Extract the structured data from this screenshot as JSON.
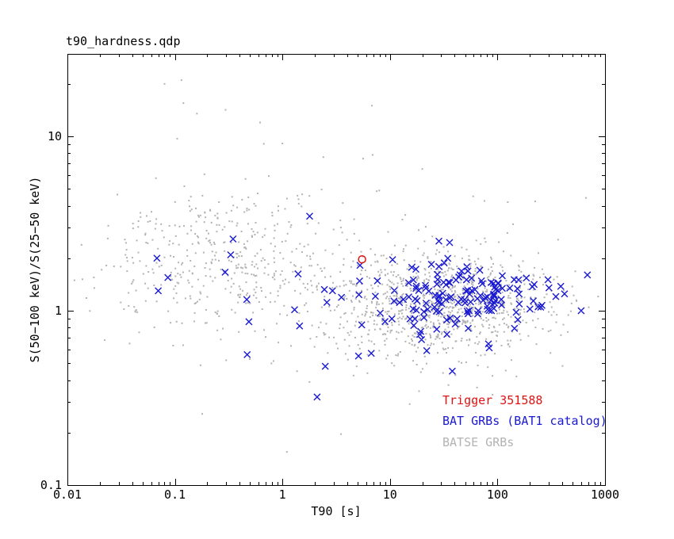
{
  "chart_data": {
    "type": "scatter",
    "title": "t90_hardness.qdp",
    "xlabel": "T90 [s]",
    "ylabel": "S(50−100 keV)/S(25−50 keV)",
    "x_log": true,
    "y_log": true,
    "xlim": [
      0.01,
      1000
    ],
    "ylim": [
      0.1,
      29.7
    ],
    "grid": false,
    "frame_color": "#000000",
    "x_ticks": [
      {
        "value": 0.01,
        "label": "0.01"
      },
      {
        "value": 0.1,
        "label": "0.1"
      },
      {
        "value": 1,
        "label": "1"
      },
      {
        "value": 10,
        "label": "10"
      },
      {
        "value": 100,
        "label": "100"
      },
      {
        "value": 1000,
        "label": "1000"
      }
    ],
    "y_ticks": [
      {
        "value": 0.1,
        "label": "0.1"
      },
      {
        "value": 1,
        "label": "1"
      },
      {
        "value": 10,
        "label": "10"
      }
    ],
    "series": [
      {
        "name": "BATSE GRBs",
        "marker": "dot",
        "color": "#b3b3b3",
        "size": 2,
        "seed": 101,
        "clusters": [
          {
            "n": 420,
            "t90_log_mean": -0.55,
            "t90_log_sigma": 0.52,
            "ratio_log_mean": 0.3,
            "ratio_log_sigma": 0.21
          },
          {
            "n": 1040,
            "t90_log_mean": 1.45,
            "t90_log_sigma": 0.52,
            "ratio_log_mean": 0.04,
            "ratio_log_sigma": 0.155
          },
          {
            "n": 70,
            "t90_log_mean": 0.7,
            "t90_log_sigma": 1.1,
            "ratio_log_mean": 0.25,
            "ratio_log_sigma": 0.42
          }
        ],
        "extra_points": [
          [
            0.115,
            21
          ],
          [
            0.08,
            20
          ],
          [
            0.12,
            15.5
          ],
          [
            0.16,
            13.5
          ],
          [
            0.62,
            12
          ],
          [
            6.8,
            15
          ],
          [
            0.105,
            9.7
          ],
          [
            1.0,
            9.1
          ],
          [
            2.4,
            7.6
          ],
          [
            20,
            6.5
          ],
          [
            1.1,
            0.155
          ],
          [
            3.5,
            0.196
          ],
          [
            60,
            0.3
          ],
          [
            90,
            0.33
          ],
          [
            150,
            0.42
          ],
          [
            0.3,
            0.52
          ]
        ]
      },
      {
        "name": "BAT GRBs (BAT1 catalog)",
        "marker": "x",
        "color": "#1a1ad2",
        "size": 9,
        "seed": 202,
        "clusters": [
          {
            "n": 14,
            "t90_log_mean": -0.15,
            "t90_log_sigma": 0.45,
            "ratio_log_mean": 0.18,
            "ratio_log_sigma": 0.15
          },
          {
            "n": 150,
            "t90_log_mean": 1.62,
            "t90_log_sigma": 0.45,
            "ratio_log_mean": 0.09,
            "ratio_log_sigma": 0.1
          }
        ],
        "extra_points": [
          [
            0.068,
            2.0
          ],
          [
            0.086,
            1.55
          ],
          [
            0.07,
            1.3
          ],
          [
            0.47,
            0.56
          ],
          [
            2.1,
            0.32
          ],
          [
            2.5,
            0.48
          ],
          [
            5.1,
            0.55
          ],
          [
            6.7,
            0.57
          ],
          [
            22,
            0.59
          ],
          [
            38,
            0.45
          ],
          [
            420,
            1.25
          ],
          [
            600,
            1.0
          ]
        ]
      },
      {
        "name": "Trigger 351588",
        "marker": "circle",
        "color": "#dc1414",
        "size": 9,
        "points": [
          [
            5.5,
            1.97
          ]
        ]
      }
    ],
    "legend": {
      "position": "lower-right",
      "entries": [
        {
          "label": "Trigger 351588",
          "color": "#dc1414"
        },
        {
          "label": "BAT GRBs (BAT1 catalog)",
          "color": "#1a1ad2"
        },
        {
          "label": "BATSE GRBs",
          "color": "#b3b3b3"
        }
      ]
    }
  }
}
